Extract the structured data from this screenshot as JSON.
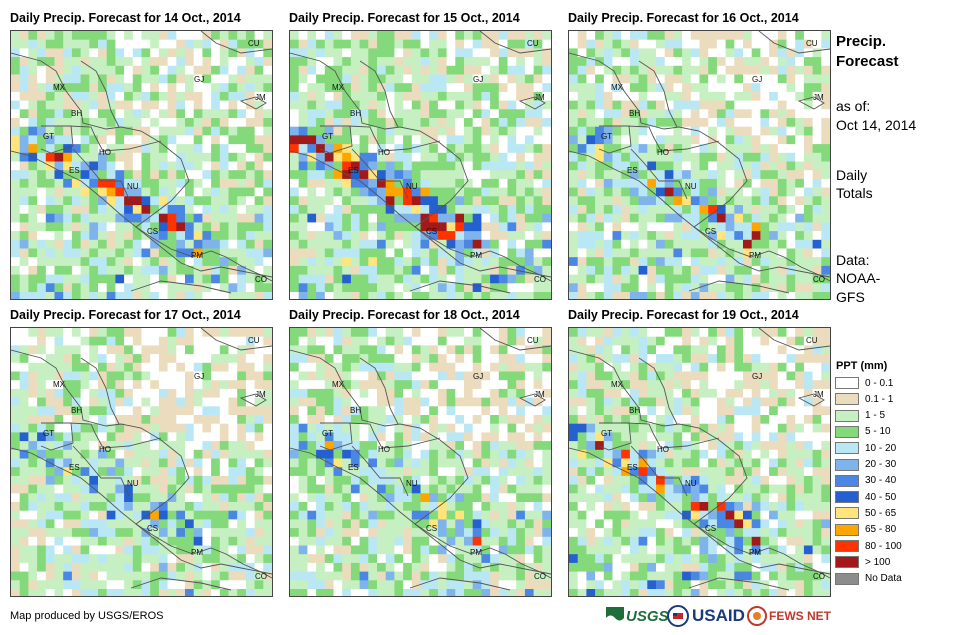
{
  "panels": [
    {
      "title": "Daily Precip. Forecast for 14 Oct., 2014",
      "seed": 14,
      "intensity": 1.0,
      "dry": 0.18
    },
    {
      "title": "Daily Precip. Forecast for 15 Oct., 2014",
      "seed": 15,
      "intensity": 1.35,
      "dry": 0.1
    },
    {
      "title": "Daily Precip. Forecast for 16 Oct., 2014",
      "seed": 16,
      "intensity": 0.9,
      "dry": 0.3
    },
    {
      "title": "Daily Precip. Forecast for 17 Oct., 2014",
      "seed": 17,
      "intensity": 0.55,
      "dry": 0.4
    },
    {
      "title": "Daily Precip. Forecast for 18 Oct., 2014",
      "seed": 18,
      "intensity": 0.7,
      "dry": 0.35
    },
    {
      "title": "Daily Precip. Forecast for 19 Oct., 2014",
      "seed": 19,
      "intensity": 1.0,
      "dry": 0.3
    }
  ],
  "country_labels": [
    "CU",
    "MX",
    "BH",
    "GJ",
    "JM",
    "GT",
    "HO",
    "ES",
    "NU",
    "CS",
    "PM",
    "CO"
  ],
  "sidebar": {
    "heading_line1": "Precip.",
    "heading_line2": "Forecast",
    "asof_label": "as of:",
    "asof_date": "Oct 14, 2014",
    "totals_line1": "Daily",
    "totals_line2": "Totals",
    "data_label": "Data:",
    "data_source_line1": "NOAA-",
    "data_source_line2": "GFS"
  },
  "legend": {
    "title": "PPT (mm)",
    "items": [
      {
        "label": "0 - 0.1",
        "color": "#ffffff"
      },
      {
        "label": "0.1 - 1",
        "color": "#ebdcbe"
      },
      {
        "label": "1 - 5",
        "color": "#c6f0c2"
      },
      {
        "label": "5 - 10",
        "color": "#84d97a"
      },
      {
        "label": "10 - 20",
        "color": "#b9e8f4"
      },
      {
        "label": "20 - 30",
        "color": "#7fb3ec"
      },
      {
        "label": "30 - 40",
        "color": "#4a86e3"
      },
      {
        "label": "40 - 50",
        "color": "#2460d0"
      },
      {
        "label": "50 - 65",
        "color": "#ffe57c"
      },
      {
        "label": "65 - 80",
        "color": "#ffa500"
      },
      {
        "label": "80 - 100",
        "color": "#ff3300"
      },
      {
        "label": "> 100",
        "color": "#a31919"
      },
      {
        "label": "No Data",
        "color": "#8c8c8c"
      }
    ]
  },
  "credit": "Map produced by USGS/EROS",
  "logos": {
    "usgs": "USGS",
    "usaid": "USAID",
    "fewsnet": "FEWS NET"
  }
}
